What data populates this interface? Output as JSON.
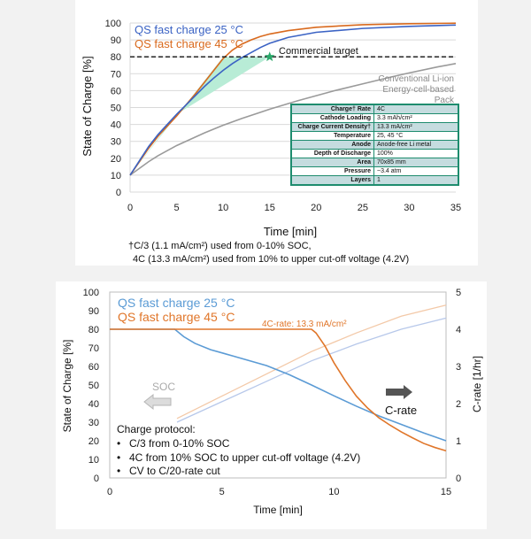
{
  "chart_data": [
    {
      "type": "line",
      "xlabel": "Time [min]",
      "ylabel": "State of Charge [%]",
      "xlim": [
        0,
        35
      ],
      "ylim": [
        0,
        100
      ],
      "xticks": [
        0,
        5,
        10,
        15,
        20,
        25,
        30,
        35
      ],
      "yticks": [
        0,
        10,
        20,
        30,
        40,
        50,
        60,
        70,
        80,
        90,
        100
      ],
      "series": [
        {
          "name": "QS fast charge 25 °C",
          "color": "#3b63c4",
          "x": [
            0,
            1,
            2,
            3,
            4,
            5,
            6,
            7,
            8,
            9,
            10,
            11,
            12,
            13,
            14,
            15,
            17,
            20,
            25,
            30,
            35
          ],
          "y": [
            10,
            18.5,
            27,
            34,
            40,
            46,
            51.5,
            57,
            62.5,
            67.5,
            72,
            76,
            79.5,
            82.5,
            85.5,
            88,
            91.5,
            94.5,
            96.8,
            98,
            98.8
          ]
        },
        {
          "name": "QS fast charge 45 °C",
          "color": "#d96a1e",
          "x": [
            0,
            1,
            2,
            3,
            4,
            5,
            6,
            7,
            8,
            9,
            10,
            11,
            12,
            13,
            14,
            15,
            17,
            20,
            25,
            30,
            35
          ],
          "y": [
            10,
            18,
            26,
            33,
            39,
            45,
            51.5,
            58,
            65,
            72,
            79,
            84,
            87.5,
            90,
            92,
            93.5,
            95.5,
            97.5,
            99,
            99.6,
            99.9
          ]
        },
        {
          "name": "Conventional Li-ion Energy-cell-based Pack",
          "color": "#9a9a9a",
          "x": [
            0,
            1,
            2,
            3,
            5,
            8,
            10,
            12,
            15,
            18,
            20,
            22,
            25,
            28,
            30,
            33,
            35
          ],
          "y": [
            10,
            14,
            18,
            21.5,
            27.5,
            35,
            39.5,
            43.5,
            49,
            54,
            57,
            60,
            64,
            68,
            70.5,
            74,
            76
          ]
        }
      ],
      "target": {
        "label": "Commercial target",
        "y": 80,
        "marker_x": 15
      },
      "shaded_region": {
        "color": "#b8ecd6",
        "polygon": [
          [
            0,
            10
          ],
          [
            10,
            80
          ],
          [
            15,
            80
          ],
          [
            5,
            46
          ]
        ]
      },
      "legend": [
        "QS fast charge 25 °C",
        "QS fast charge 45 °C"
      ],
      "annotation": "Conventional Li-ion\nEnergy-cell-based\nPack"
    },
    {
      "type": "line",
      "xlabel": "Time [min]",
      "ylabel": "State of Charge [%]",
      "y2label": "C-rate [1/hr]",
      "xlim": [
        0,
        15
      ],
      "ylim": [
        0,
        100
      ],
      "y2lim": [
        0,
        5
      ],
      "xticks": [
        0,
        5,
        10,
        15
      ],
      "yticks": [
        0,
        10,
        20,
        30,
        40,
        50,
        60,
        70,
        80,
        90,
        100
      ],
      "y2ticks": [
        0,
        1,
        2,
        3,
        4,
        5
      ],
      "crate_series": [
        {
          "name": "QS fast charge 25 °C C-rate",
          "color": "#5b9bd5",
          "x": [
            0,
            2.9,
            3.3,
            3.8,
            4.5,
            5.5,
            7,
            8,
            9,
            10,
            11,
            12,
            13,
            14,
            15
          ],
          "y": [
            4,
            4,
            3.8,
            3.62,
            3.45,
            3.28,
            3.02,
            2.78,
            2.5,
            2.21,
            1.93,
            1.67,
            1.44,
            1.21,
            1.0
          ]
        },
        {
          "name": "QS fast charge 45 °C C-rate",
          "color": "#e0762a",
          "x": [
            0,
            9,
            9.2,
            9.6,
            10,
            10.5,
            11,
            11.5,
            12,
            12.5,
            13,
            13.5,
            14,
            14.5,
            15
          ],
          "y": [
            4,
            4,
            3.9,
            3.55,
            3.1,
            2.62,
            2.2,
            1.88,
            1.62,
            1.42,
            1.24,
            1.08,
            0.93,
            0.82,
            0.73
          ]
        }
      ],
      "soc_series": [
        {
          "name": "QS fast charge 25 °C SOC",
          "color": "#b7c8ea",
          "x": [
            3,
            5,
            7,
            9,
            11,
            13,
            15
          ],
          "y": [
            30,
            41,
            52,
            63,
            72,
            80,
            86
          ]
        },
        {
          "name": "QS fast charge 45 °C SOC",
          "color": "#f3c9a8",
          "x": [
            3,
            5,
            7,
            9,
            11,
            13,
            15
          ],
          "y": [
            32,
            44,
            56,
            68,
            78,
            87,
            93
          ]
        }
      ],
      "legend": [
        "QS fast charge 25 °C",
        "QS fast charge 45 °C"
      ],
      "annotations": [
        "4C-rate: 13.3 mA/cm²",
        "SOC",
        "C-rate"
      ]
    }
  ],
  "top": {
    "title_series_colors": {
      "blue": "#3b63c4",
      "orange": "#d96a1e",
      "gray": "#9a9a9a",
      "green": "#2aa86a",
      "fill": "#b8ecd6"
    },
    "legend_25": "QS fast charge 25 °C",
    "legend_45": "QS fast charge 45 °C",
    "target_label": "Commercial target",
    "conv_line1": "Conventional Li-ion",
    "conv_line2": "Energy-cell-based",
    "conv_line3": "Pack",
    "xlabel": "Time [min]",
    "ylabel": "State of Charge [%]",
    "specs": [
      {
        "key": "Charge† Rate",
        "value": "4C"
      },
      {
        "key": "Cathode Loading",
        "value": "3.3 mAh/cm²"
      },
      {
        "key": "Charge Current Density†",
        "value": "13.3 mA/cm²"
      },
      {
        "key": "Temperature",
        "value": "25, 45 °C"
      },
      {
        "key": "Anode",
        "value": "Anode-free Li metal"
      },
      {
        "key": "Depth of Discharge",
        "value": "100%"
      },
      {
        "key": "Area",
        "value": "70x85 mm"
      },
      {
        "key": "Pressure",
        "value": "~3.4 atm"
      },
      {
        "key": "Layers",
        "value": "1"
      }
    ],
    "footnote_1": "†C/3 (1.1 mA/cm²) used from 0-10% SOC,",
    "footnote_2": "4C (13.3 mA/cm²) used from 10% to upper cut-off voltage (4.2V)"
  },
  "bottom": {
    "legend_25": "QS fast charge 25 °C",
    "legend_45": "QS fast charge 45 °C",
    "rate_label": "4C-rate: 13.3 mA/cm²",
    "soc_label": "SOC",
    "crate_label": "C-rate",
    "xlabel": "Time [min]",
    "ylabel": "State of Charge [%]",
    "y2label": "C-rate [1/hr]",
    "protocol_title": "Charge protocol:",
    "protocol_items": [
      "C/3 from 0-10% SOC",
      "4C from 10% SOC to upper cut-off voltage (4.2V)",
      "CV to C/20-rate cut"
    ]
  }
}
